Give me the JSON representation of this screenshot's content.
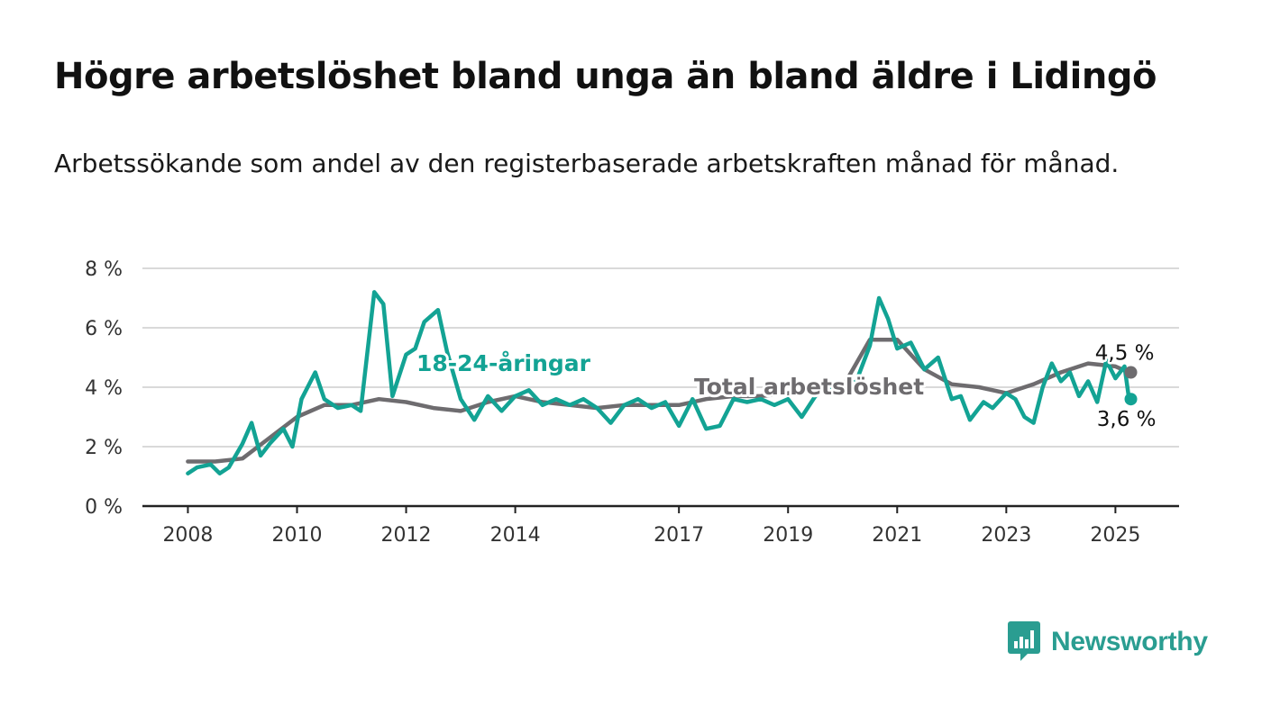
{
  "title": "Högre arbetslöshet bland unga än bland äldre i Lidingö",
  "subtitle": "Arbetssökande som andel av den registerbaserade arbetskraften månad för månad.",
  "logo": {
    "text": "Newsworthy",
    "icon": "bar-chart-speech-bubble-icon",
    "color": "#2a9d91"
  },
  "chart_data": {
    "type": "line",
    "title": "",
    "xlabel": "",
    "ylabel": "",
    "ylim": [
      0,
      8
    ],
    "xlim": [
      "2007-03",
      "2026-03"
    ],
    "y_ticks": [
      0,
      2,
      4,
      6,
      8
    ],
    "y_tick_labels": [
      "0 %",
      "2 %",
      "4 %",
      "6 %",
      "8 %"
    ],
    "x_ticks": [
      "2008-01",
      "2010-01",
      "2012-01",
      "2014-01",
      "2017-01",
      "2019-01",
      "2021-01",
      "2023-01",
      "2025-01"
    ],
    "x_tick_labels": [
      "2008",
      "2010",
      "2012",
      "2014",
      "2017",
      "2019",
      "2021",
      "2023",
      "2025"
    ],
    "grid": true,
    "legend": "none",
    "series": [
      {
        "name": "Total arbetslöshet",
        "color": "#6e6c6f",
        "end_label": "4,5 %",
        "points": [
          [
            "2008-01",
            1.5
          ],
          [
            "2008-07",
            1.5
          ],
          [
            "2009-01",
            1.6
          ],
          [
            "2009-07",
            2.3
          ],
          [
            "2010-01",
            3.0
          ],
          [
            "2010-07",
            3.4
          ],
          [
            "2011-01",
            3.4
          ],
          [
            "2011-07",
            3.6
          ],
          [
            "2012-01",
            3.5
          ],
          [
            "2012-07",
            3.3
          ],
          [
            "2013-01",
            3.2
          ],
          [
            "2013-07",
            3.5
          ],
          [
            "2014-01",
            3.7
          ],
          [
            "2014-07",
            3.5
          ],
          [
            "2015-01",
            3.4
          ],
          [
            "2015-07",
            3.3
          ],
          [
            "2016-01",
            3.4
          ],
          [
            "2016-07",
            3.4
          ],
          [
            "2017-01",
            3.4
          ],
          [
            "2017-07",
            3.6
          ],
          [
            "2018-01",
            3.7
          ],
          [
            "2018-07",
            3.7
          ],
          [
            "2019-01",
            3.8
          ],
          [
            "2019-07",
            3.9
          ],
          [
            "2020-01",
            4.0
          ],
          [
            "2020-07",
            5.6
          ],
          [
            "2021-01",
            5.6
          ],
          [
            "2021-07",
            4.6
          ],
          [
            "2022-01",
            4.1
          ],
          [
            "2022-07",
            4.0
          ],
          [
            "2023-01",
            3.8
          ],
          [
            "2023-07",
            4.1
          ],
          [
            "2024-01",
            4.5
          ],
          [
            "2024-07",
            4.8
          ],
          [
            "2025-01",
            4.7
          ],
          [
            "2025-04",
            4.5
          ]
        ]
      },
      {
        "name": "18-24-åringar",
        "color": "#13a394",
        "end_label": "3,6 %",
        "points": [
          [
            "2008-01",
            1.1
          ],
          [
            "2008-03",
            1.3
          ],
          [
            "2008-06",
            1.4
          ],
          [
            "2008-08",
            1.1
          ],
          [
            "2008-10",
            1.3
          ],
          [
            "2009-01",
            2.1
          ],
          [
            "2009-03",
            2.8
          ],
          [
            "2009-05",
            1.7
          ],
          [
            "2009-07",
            2.1
          ],
          [
            "2009-10",
            2.6
          ],
          [
            "2009-12",
            2.0
          ],
          [
            "2010-02",
            3.6
          ],
          [
            "2010-05",
            4.5
          ],
          [
            "2010-07",
            3.6
          ],
          [
            "2010-10",
            3.3
          ],
          [
            "2011-01",
            3.4
          ],
          [
            "2011-03",
            3.2
          ],
          [
            "2011-06",
            7.2
          ],
          [
            "2011-08",
            6.8
          ],
          [
            "2011-10",
            3.7
          ],
          [
            "2012-01",
            5.1
          ],
          [
            "2012-03",
            5.3
          ],
          [
            "2012-05",
            6.2
          ],
          [
            "2012-08",
            6.6
          ],
          [
            "2012-10",
            5.2
          ],
          [
            "2013-01",
            3.6
          ],
          [
            "2013-04",
            2.9
          ],
          [
            "2013-07",
            3.7
          ],
          [
            "2013-10",
            3.2
          ],
          [
            "2014-01",
            3.7
          ],
          [
            "2014-04",
            3.9
          ],
          [
            "2014-07",
            3.4
          ],
          [
            "2014-10",
            3.6
          ],
          [
            "2015-01",
            3.4
          ],
          [
            "2015-04",
            3.6
          ],
          [
            "2015-07",
            3.3
          ],
          [
            "2015-10",
            2.8
          ],
          [
            "2016-01",
            3.4
          ],
          [
            "2016-04",
            3.6
          ],
          [
            "2016-07",
            3.3
          ],
          [
            "2016-10",
            3.5
          ],
          [
            "2017-01",
            2.7
          ],
          [
            "2017-04",
            3.6
          ],
          [
            "2017-07",
            2.6
          ],
          [
            "2017-10",
            2.7
          ],
          [
            "2018-01",
            3.6
          ],
          [
            "2018-04",
            3.5
          ],
          [
            "2018-07",
            3.6
          ],
          [
            "2018-10",
            3.4
          ],
          [
            "2019-01",
            3.6
          ],
          [
            "2019-04",
            3.0
          ],
          [
            "2019-07",
            3.7
          ],
          [
            "2019-10",
            4.0
          ],
          [
            "2020-01",
            4.1
          ],
          [
            "2020-04",
            4.2
          ],
          [
            "2020-07",
            5.4
          ],
          [
            "2020-09",
            7.0
          ],
          [
            "2020-11",
            6.3
          ],
          [
            "2021-01",
            5.3
          ],
          [
            "2021-04",
            5.5
          ],
          [
            "2021-07",
            4.6
          ],
          [
            "2021-10",
            5.0
          ],
          [
            "2022-01",
            3.6
          ],
          [
            "2022-03",
            3.7
          ],
          [
            "2022-05",
            2.9
          ],
          [
            "2022-08",
            3.5
          ],
          [
            "2022-10",
            3.3
          ],
          [
            "2023-01",
            3.8
          ],
          [
            "2023-03",
            3.6
          ],
          [
            "2023-05",
            3.0
          ],
          [
            "2023-07",
            2.8
          ],
          [
            "2023-09",
            4.0
          ],
          [
            "2023-11",
            4.8
          ],
          [
            "2024-01",
            4.2
          ],
          [
            "2024-03",
            4.5
          ],
          [
            "2024-05",
            3.7
          ],
          [
            "2024-07",
            4.2
          ],
          [
            "2024-09",
            3.5
          ],
          [
            "2024-11",
            4.9
          ],
          [
            "2025-01",
            4.3
          ],
          [
            "2025-03",
            4.7
          ],
          [
            "2025-04",
            3.6
          ]
        ]
      }
    ]
  }
}
